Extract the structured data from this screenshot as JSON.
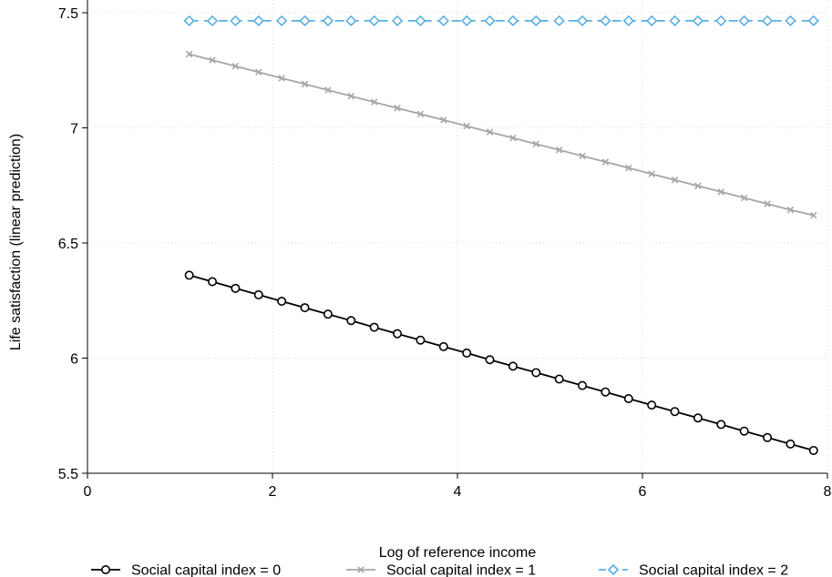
{
  "chart_data": {
    "type": "line",
    "title": "",
    "xlabel": "Log of reference income",
    "ylabel": "Life satisfaction (linear prediction)",
    "xlim": [
      0,
      8
    ],
    "ylim": [
      5.5,
      7.5
    ],
    "x_ticks": [
      0,
      2,
      4,
      6,
      8
    ],
    "y_ticks": [
      5.5,
      6,
      6.5,
      7,
      7.5
    ],
    "x_tick_labels": [
      "0",
      "2",
      "4",
      "6",
      "8"
    ],
    "y_tick_labels": [
      "5.5",
      "6",
      "6.5",
      "7",
      "7.5"
    ],
    "grid": true,
    "legend_position": "bottom",
    "x": [
      1.1,
      1.35,
      1.6,
      1.85,
      2.1,
      2.35,
      2.6,
      2.85,
      3.1,
      3.35,
      3.6,
      3.85,
      4.1,
      4.35,
      4.6,
      4.85,
      5.1,
      5.35,
      5.6,
      5.85,
      6.1,
      6.35,
      6.6,
      6.85,
      7.1,
      7.35,
      7.6,
      7.85
    ],
    "series": [
      {
        "name": "Social capital index = 0",
        "color": "#000000",
        "marker": "circle",
        "line_style": "solid",
        "values": [
          6.36,
          6.332,
          6.303,
          6.275,
          6.247,
          6.219,
          6.191,
          6.163,
          6.134,
          6.106,
          6.078,
          6.05,
          6.022,
          5.993,
          5.965,
          5.937,
          5.909,
          5.881,
          5.853,
          5.824,
          5.796,
          5.768,
          5.74,
          5.712,
          5.683,
          5.655,
          5.627,
          5.599
        ]
      },
      {
        "name": "Social capital index = 1",
        "color": "#a6a6a6",
        "marker": "x",
        "line_style": "solid",
        "values": [
          7.32,
          7.294,
          7.268,
          7.242,
          7.216,
          7.19,
          7.164,
          7.138,
          7.112,
          7.086,
          7.06,
          7.034,
          7.008,
          6.982,
          6.956,
          6.93,
          6.904,
          6.878,
          6.852,
          6.826,
          6.8,
          6.774,
          6.748,
          6.722,
          6.696,
          6.67,
          6.644,
          6.62
        ]
      },
      {
        "name": "Social capital index = 2",
        "color": "#5bb0e0",
        "marker": "diamond",
        "line_style": "dashed",
        "values": [
          7.465,
          7.465,
          7.465,
          7.465,
          7.465,
          7.465,
          7.465,
          7.465,
          7.465,
          7.465,
          7.465,
          7.465,
          7.465,
          7.465,
          7.465,
          7.465,
          7.465,
          7.465,
          7.465,
          7.465,
          7.465,
          7.465,
          7.465,
          7.465,
          7.465,
          7.465,
          7.465,
          7.465
        ]
      }
    ]
  }
}
